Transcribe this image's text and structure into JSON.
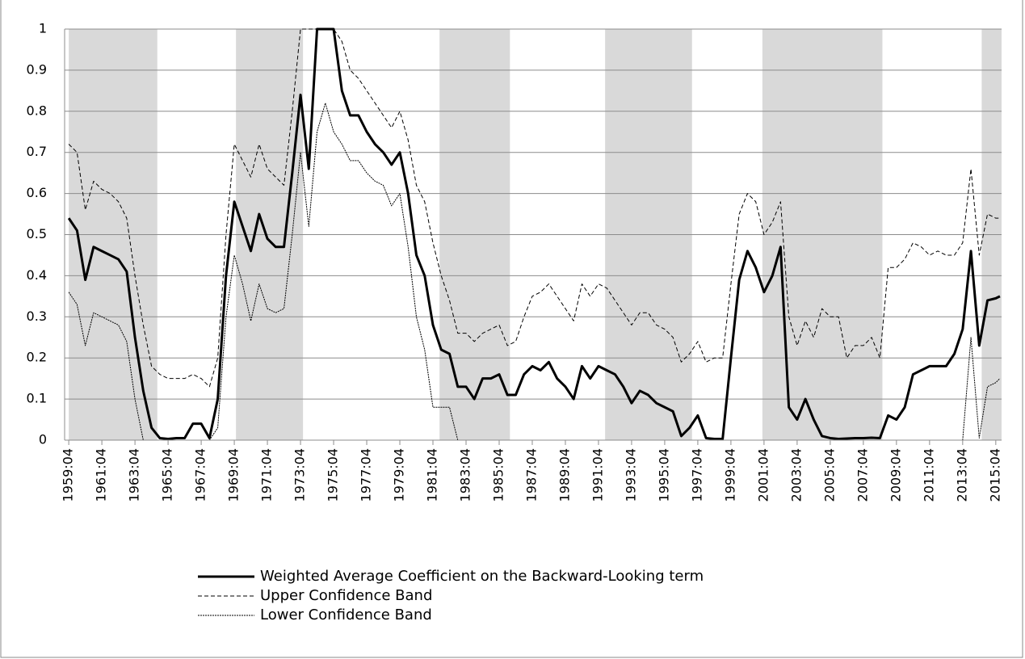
{
  "chart_data": {
    "type": "line",
    "x": [
      1959.75,
      1960.25,
      1960.75,
      1961.25,
      1961.75,
      1962.25,
      1962.75,
      1963.25,
      1963.75,
      1964.25,
      1964.75,
      1965.25,
      1965.75,
      1966.25,
      1966.75,
      1967.25,
      1967.75,
      1968.25,
      1968.75,
      1969.25,
      1969.75,
      1970.25,
      1970.75,
      1971.25,
      1971.75,
      1972.25,
      1972.75,
      1973.25,
      1973.75,
      1974.25,
      1974.75,
      1975.25,
      1975.75,
      1976.25,
      1976.75,
      1977.25,
      1977.75,
      1978.25,
      1978.75,
      1979.25,
      1979.75,
      1980.25,
      1980.75,
      1981.25,
      1981.75,
      1982.25,
      1982.75,
      1983.25,
      1983.75,
      1984.25,
      1984.75,
      1985.25,
      1985.75,
      1986.25,
      1986.75,
      1987.25,
      1987.75,
      1988.25,
      1988.75,
      1989.25,
      1989.75,
      1990.25,
      1990.75,
      1991.25,
      1991.75,
      1992.25,
      1992.75,
      1993.25,
      1993.75,
      1994.25,
      1994.75,
      1995.25,
      1995.75,
      1996.25,
      1996.75,
      1997.25,
      1997.75,
      1998.25,
      1998.75,
      1999.25,
      1999.75,
      2000.25,
      2000.75,
      2001.25,
      2001.75,
      2002.25,
      2002.75,
      2003.25,
      2003.75,
      2004.25,
      2004.75,
      2005.25,
      2005.75,
      2006.25,
      2006.75,
      2007.25,
      2007.75,
      2008.25,
      2008.75,
      2009.25,
      2009.75,
      2010.25,
      2010.75,
      2011.25,
      2011.75,
      2012.25,
      2012.75,
      2013.25,
      2013.75,
      2014.25,
      2014.75,
      2015.25,
      2015.75,
      2016.0
    ],
    "series": [
      {
        "name": "Weighted Average Coefficient on the Backward-Looking term",
        "color": "#000000",
        "line_style": "solid",
        "values": [
          0.54,
          0.51,
          0.39,
          0.47,
          0.46,
          0.45,
          0.44,
          0.41,
          0.25,
          0.12,
          0.03,
          0.005,
          0.003,
          0.005,
          0.005,
          0.04,
          0.04,
          0.005,
          0.1,
          0.4,
          0.58,
          0.52,
          0.46,
          0.55,
          0.49,
          0.47,
          0.47,
          0.65,
          0.84,
          0.66,
          1.0,
          1.0,
          1.0,
          0.85,
          0.79,
          0.79,
          0.75,
          0.72,
          0.7,
          0.67,
          0.7,
          0.6,
          0.45,
          0.4,
          0.28,
          0.22,
          0.21,
          0.13,
          0.13,
          0.1,
          0.15,
          0.15,
          0.16,
          0.11,
          0.11,
          0.16,
          0.18,
          0.17,
          0.19,
          0.15,
          0.13,
          0.1,
          0.18,
          0.15,
          0.18,
          0.17,
          0.16,
          0.13,
          0.09,
          0.12,
          0.11,
          0.09,
          0.08,
          0.07,
          0.01,
          0.03,
          0.06,
          0.005,
          0.003,
          0.003,
          0.2,
          0.39,
          0.46,
          0.42,
          0.36,
          0.4,
          0.47,
          0.08,
          0.05,
          0.1,
          0.05,
          0.01,
          0.005,
          0.003,
          0.004,
          0.005,
          0.005,
          0.006,
          0.005,
          0.06,
          0.05,
          0.08,
          0.16,
          0.17,
          0.18,
          0.18,
          0.18,
          0.21,
          0.27,
          0.46,
          0.23,
          0.34,
          0.345,
          0.35
        ]
      },
      {
        "name": "Upper Confidence Band",
        "color": "#000000",
        "line_style": "dashed",
        "values": [
          0.72,
          0.7,
          0.56,
          0.63,
          0.61,
          0.6,
          0.58,
          0.54,
          0.4,
          0.28,
          0.18,
          0.16,
          0.15,
          0.15,
          0.15,
          0.16,
          0.15,
          0.13,
          0.2,
          0.5,
          0.72,
          0.68,
          0.64,
          0.72,
          0.66,
          0.64,
          0.62,
          0.8,
          1.0,
          1.0,
          1.0,
          1.0,
          1.0,
          0.97,
          0.9,
          0.88,
          0.85,
          0.82,
          0.79,
          0.76,
          0.8,
          0.73,
          0.62,
          0.58,
          0.48,
          0.4,
          0.34,
          0.26,
          0.26,
          0.24,
          0.26,
          0.27,
          0.28,
          0.23,
          0.24,
          0.3,
          0.35,
          0.36,
          0.38,
          0.35,
          0.32,
          0.29,
          0.38,
          0.35,
          0.38,
          0.37,
          0.34,
          0.31,
          0.28,
          0.31,
          0.31,
          0.28,
          0.27,
          0.25,
          0.19,
          0.21,
          0.24,
          0.19,
          0.2,
          0.2,
          0.38,
          0.55,
          0.6,
          0.58,
          0.5,
          0.53,
          0.58,
          0.3,
          0.23,
          0.29,
          0.25,
          0.32,
          0.3,
          0.3,
          0.2,
          0.23,
          0.23,
          0.25,
          0.2,
          0.42,
          0.42,
          0.44,
          0.48,
          0.47,
          0.45,
          0.46,
          0.45,
          0.45,
          0.48,
          0.66,
          0.45,
          0.55,
          0.54,
          0.54
        ]
      },
      {
        "name": "Lower Confidence Band",
        "color": "#000000",
        "line_style": "dotted",
        "values": [
          0.36,
          0.33,
          0.23,
          0.31,
          0.3,
          0.29,
          0.28,
          0.24,
          0.1,
          0,
          0,
          0,
          0,
          0,
          0,
          0,
          0,
          0,
          0.03,
          0.3,
          0.45,
          0.38,
          0.29,
          0.38,
          0.32,
          0.31,
          0.32,
          0.5,
          0.7,
          0.52,
          0.75,
          0.82,
          0.75,
          0.72,
          0.68,
          0.68,
          0.65,
          0.63,
          0.62,
          0.57,
          0.6,
          0.47,
          0.3,
          0.22,
          0.08,
          0.08,
          0.08,
          0,
          0,
          0,
          0,
          0,
          0,
          0,
          0,
          0,
          0,
          0,
          0,
          0,
          0,
          0,
          0,
          0,
          0,
          0,
          0,
          0,
          0,
          0,
          0,
          0,
          0,
          0,
          0,
          0,
          0,
          0,
          0,
          0,
          0,
          0,
          0,
          0,
          0,
          0,
          0,
          0,
          0,
          0,
          0,
          0,
          0,
          0,
          0,
          0,
          0,
          0,
          0,
          0,
          0,
          0,
          0,
          0,
          0,
          0,
          0,
          0,
          0,
          0.25,
          0.005,
          0.13,
          0.14,
          0.15
        ]
      }
    ],
    "bands": [
      [
        1959.75,
        1965.1
      ],
      [
        1969.85,
        1973.9
      ],
      [
        1982.15,
        1986.4
      ],
      [
        1992.15,
        1997.4
      ],
      [
        2001.65,
        2008.9
      ],
      [
        2014.9,
        2016.1
      ]
    ],
    "band_color": "#d9d9d9",
    "xlim": [
      1959.5,
      2016.1
    ],
    "xticks": [
      {
        "value": 1959.75,
        "label": "1959:04"
      },
      {
        "value": 1961.75,
        "label": "1961:04"
      },
      {
        "value": 1963.75,
        "label": "1963:04"
      },
      {
        "value": 1965.75,
        "label": "1965:04"
      },
      {
        "value": 1967.75,
        "label": "1967:04"
      },
      {
        "value": 1969.75,
        "label": "1969:04"
      },
      {
        "value": 1971.75,
        "label": "1971:04"
      },
      {
        "value": 1973.75,
        "label": "1973:04"
      },
      {
        "value": 1975.75,
        "label": "1975:04"
      },
      {
        "value": 1977.75,
        "label": "1977:04"
      },
      {
        "value": 1979.75,
        "label": "1979:04"
      },
      {
        "value": 1981.75,
        "label": "1981:04"
      },
      {
        "value": 1983.75,
        "label": "1983:04"
      },
      {
        "value": 1985.75,
        "label": "1985:04"
      },
      {
        "value": 1987.75,
        "label": "1987:04"
      },
      {
        "value": 1989.75,
        "label": "1989:04"
      },
      {
        "value": 1991.75,
        "label": "1991:04"
      },
      {
        "value": 1993.75,
        "label": "1993:04"
      },
      {
        "value": 1995.75,
        "label": "1995:04"
      },
      {
        "value": 1997.75,
        "label": "1997:04"
      },
      {
        "value": 1999.75,
        "label": "1999:04"
      },
      {
        "value": 2001.75,
        "label": "2001:04"
      },
      {
        "value": 2003.75,
        "label": "2003:04"
      },
      {
        "value": 2005.75,
        "label": "2005:04"
      },
      {
        "value": 2007.75,
        "label": "2007:04"
      },
      {
        "value": 2009.75,
        "label": "2009:04"
      },
      {
        "value": 2011.75,
        "label": "2011:04"
      },
      {
        "value": 2013.75,
        "label": "2013:04"
      },
      {
        "value": 2015.75,
        "label": "2015:04"
      }
    ],
    "ylim": [
      0,
      1
    ],
    "yticks": [
      0,
      0.1,
      0.2,
      0.3,
      0.4,
      0.5,
      0.6,
      0.7,
      0.8,
      0.9,
      1
    ],
    "grid": true
  }
}
